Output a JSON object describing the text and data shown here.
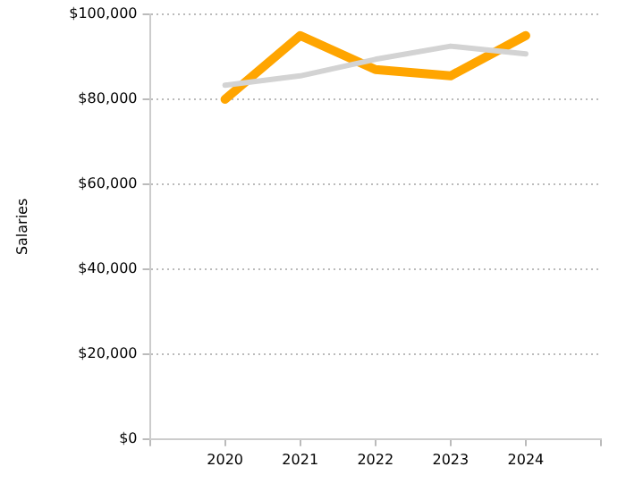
{
  "chart_data": {
    "type": "line",
    "ylabel": "Salaries",
    "x": [
      2020,
      2021,
      2022,
      2023,
      2024
    ],
    "series": [
      {
        "color": "#d3d3d3",
        "values": [
          83300,
          85500,
          89400,
          92500,
          90700
        ]
      },
      {
        "color": "#ffa500",
        "values": [
          80000,
          95000,
          87000,
          85500,
          95000
        ]
      }
    ],
    "xlim": [
      2019,
      2025
    ],
    "xticks": [
      {
        "value": 2019,
        "label": null
      },
      2020,
      2021,
      2022,
      2023,
      2024,
      {
        "value": 2025,
        "label": null
      }
    ],
    "ylim": [
      0,
      100000
    ],
    "yticks": [
      {
        "value": 0,
        "label": "$0"
      },
      {
        "value": 20000,
        "label": "$20,000"
      },
      {
        "value": 40000,
        "label": "$40,000"
      },
      {
        "value": 60000,
        "label": "$60,000"
      },
      {
        "value": 80000,
        "label": "$80,000"
      },
      {
        "value": 100000,
        "label": "$100,000"
      }
    ],
    "grid": "y",
    "legend": false,
    "marker": "none",
    "line_style": "solid"
  }
}
